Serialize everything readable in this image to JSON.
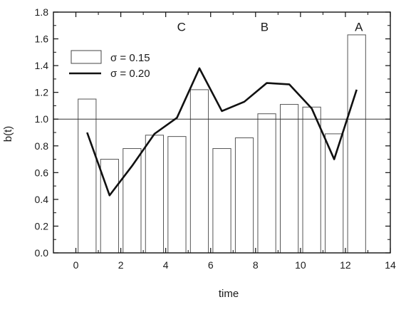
{
  "chart_data": {
    "type": "bar",
    "xlabel": "time",
    "ylabel": "b(t)",
    "xlim": [
      -1,
      14
    ],
    "ylim": [
      0.0,
      1.8
    ],
    "x_ticks": [
      "0",
      "2",
      "4",
      "6",
      "8",
      "10",
      "12",
      "14"
    ],
    "y_ticks": [
      "0.0",
      "0.2",
      "0.4",
      "0.6",
      "0.8",
      "1.0",
      "1.2",
      "1.4",
      "1.6",
      "1.8"
    ],
    "reference_line": {
      "y": 1.0
    },
    "series": [
      {
        "name": "σ = 0.15",
        "kind": "bar",
        "bar_width": 0.8,
        "x": [
          0.5,
          1.5,
          2.5,
          3.5,
          4.5,
          5.5,
          6.5,
          7.5,
          8.5,
          9.5,
          10.5,
          11.5,
          12.5
        ],
        "values": [
          1.15,
          0.7,
          0.78,
          0.88,
          0.87,
          1.22,
          0.78,
          0.86,
          1.04,
          1.11,
          1.09,
          0.89,
          1.63
        ]
      },
      {
        "name": "σ = 0.20",
        "kind": "line",
        "x": [
          0.5,
          1.5,
          2.5,
          3.5,
          4.5,
          5.5,
          6.5,
          7.5,
          8.5,
          9.5,
          10.5,
          11.5,
          12.5
        ],
        "values": [
          0.9,
          0.43,
          0.65,
          0.89,
          1.01,
          1.38,
          1.06,
          1.13,
          1.27,
          1.26,
          1.08,
          0.7,
          1.22
        ]
      }
    ],
    "annotations": [
      {
        "text": "C",
        "x": 4.7,
        "y": 1.66
      },
      {
        "text": "B",
        "x": 8.4,
        "y": 1.66
      },
      {
        "text": "A",
        "x": 12.6,
        "y": 1.66
      }
    ],
    "legend": {
      "position": "top-left"
    },
    "grid": false
  }
}
